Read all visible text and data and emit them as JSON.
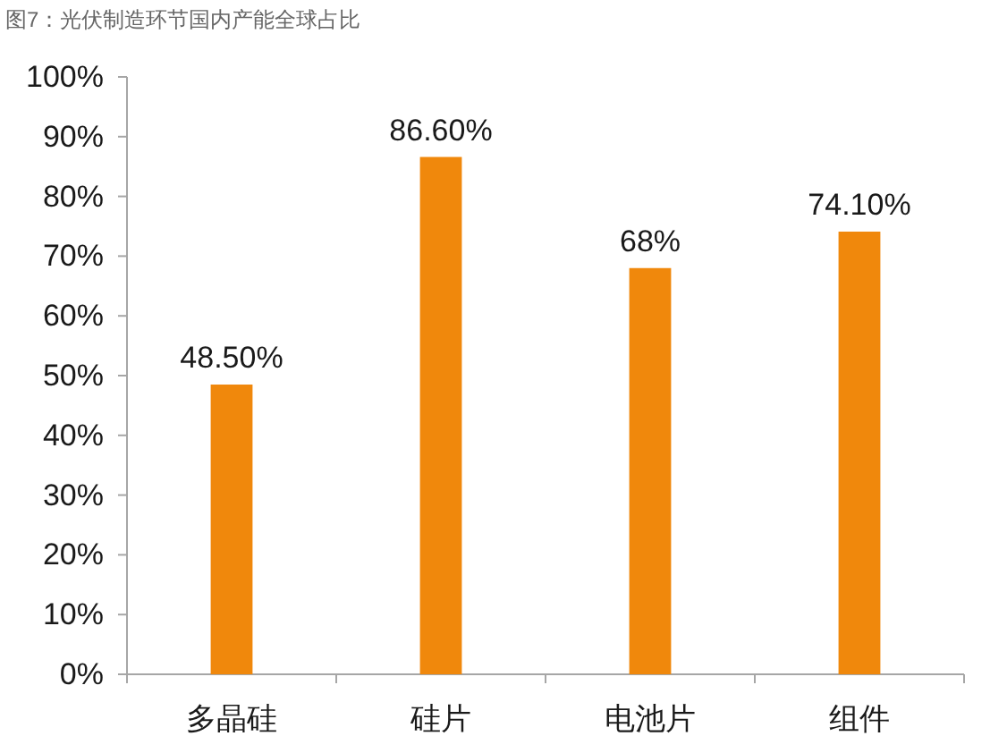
{
  "chart_data": {
    "type": "bar",
    "title": "图7：光伏制造环节国内产能全球占比",
    "categories": [
      "多晶硅",
      "硅片",
      "电池片",
      "组件"
    ],
    "values": [
      48.5,
      86.6,
      68,
      74.1
    ],
    "value_labels": [
      "48.50%",
      "86.60%",
      "68%",
      "74.10%"
    ],
    "color": "#f0880c",
    "ylim": [
      0,
      100
    ],
    "yticks": [
      {
        "value": 0,
        "label": "0%"
      },
      {
        "value": 10,
        "label": "10%"
      },
      {
        "value": 20,
        "label": "20%"
      },
      {
        "value": 30,
        "label": "30%"
      },
      {
        "value": 40,
        "label": "40%"
      },
      {
        "value": 50,
        "label": "50%"
      },
      {
        "value": 60,
        "label": "60%"
      },
      {
        "value": 70,
        "label": "70%"
      },
      {
        "value": 80,
        "label": "80%"
      },
      {
        "value": 90,
        "label": "90%"
      },
      {
        "value": 100,
        "label": "100%"
      }
    ]
  }
}
